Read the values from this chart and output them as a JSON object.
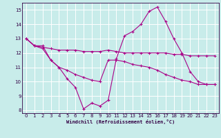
{
  "xlabel": "Windchill (Refroidissement éolien,°C)",
  "xlim": [
    -0.5,
    23.5
  ],
  "ylim": [
    7.8,
    15.5
  ],
  "yticks": [
    8,
    9,
    10,
    11,
    12,
    13,
    14,
    15
  ],
  "xticks": [
    0,
    1,
    2,
    3,
    4,
    5,
    6,
    7,
    8,
    9,
    10,
    11,
    12,
    13,
    14,
    15,
    16,
    17,
    18,
    19,
    20,
    21,
    22,
    23
  ],
  "background_color": "#c8ecea",
  "grid_color": "#ffffff",
  "line_color": "#aa0088",
  "series": [
    {
      "x": [
        0,
        1,
        2,
        3,
        4,
        5,
        6,
        7,
        8,
        9,
        10,
        11,
        12,
        13,
        14,
        15,
        16,
        17,
        18,
        19,
        20,
        21,
        22,
        23
      ],
      "y": [
        13,
        12.5,
        12.5,
        11.5,
        11.0,
        10.2,
        9.6,
        8.1,
        8.5,
        8.3,
        8.7,
        11.6,
        13.2,
        13.5,
        14.0,
        14.9,
        15.2,
        14.2,
        13.0,
        12.0,
        10.7,
        10.0,
        9.8,
        9.8
      ]
    },
    {
      "x": [
        0,
        1,
        2,
        3,
        4,
        5,
        6,
        7,
        8,
        9,
        10,
        11,
        12,
        13,
        14,
        15,
        16,
        17,
        18,
        19,
        20,
        21,
        22,
        23
      ],
      "y": [
        13,
        12.5,
        12.4,
        12.3,
        12.2,
        12.2,
        12.2,
        12.1,
        12.1,
        12.1,
        12.2,
        12.1,
        12.0,
        12.0,
        12.0,
        12.0,
        12.0,
        12.0,
        11.9,
        11.9,
        11.8,
        11.8,
        11.8,
        11.8
      ]
    },
    {
      "x": [
        0,
        1,
        2,
        3,
        4,
        5,
        6,
        7,
        8,
        9,
        10,
        11,
        12,
        13,
        14,
        15,
        16,
        17,
        18,
        19,
        20,
        21,
        22,
        23
      ],
      "y": [
        13,
        12.5,
        12.3,
        11.5,
        11.0,
        10.8,
        10.5,
        10.3,
        10.1,
        10.0,
        11.5,
        11.5,
        11.4,
        11.2,
        11.1,
        11.0,
        10.8,
        10.5,
        10.3,
        10.1,
        10.0,
        9.8,
        9.8,
        9.8
      ]
    }
  ]
}
